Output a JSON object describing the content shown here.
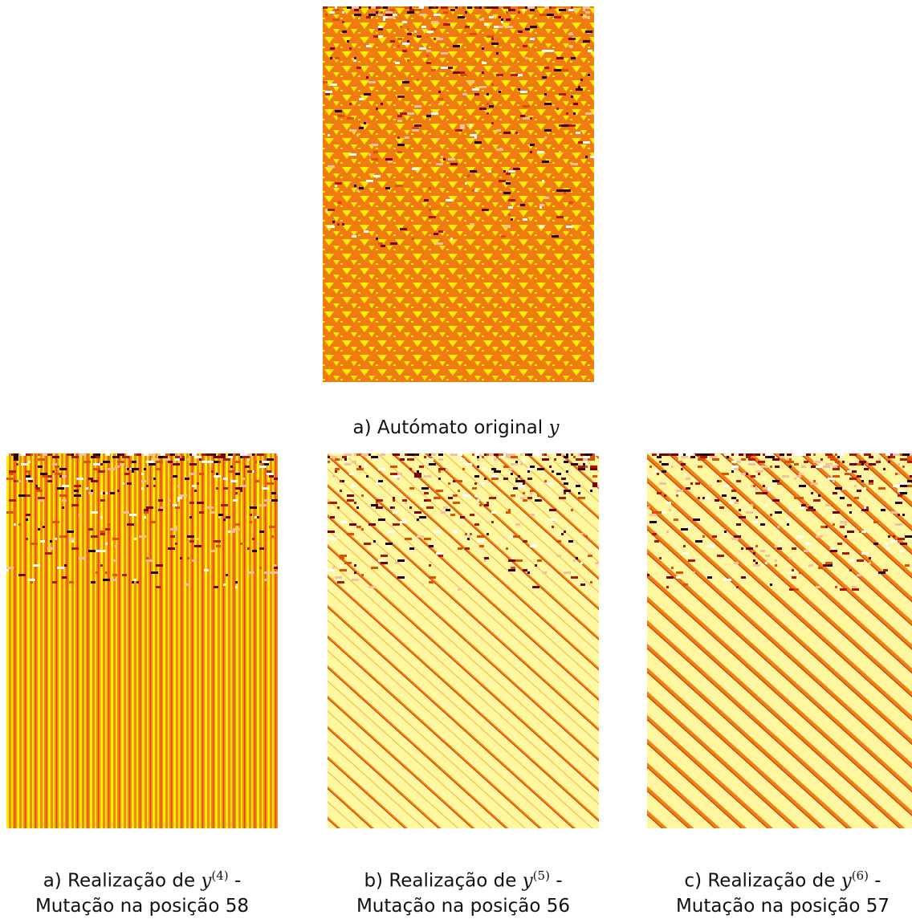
{
  "figure": {
    "top": {
      "label": "a) Autómato original",
      "math": "y"
    },
    "panels": [
      {
        "label": "a) Realização de",
        "math": "y",
        "superscript": "(4)",
        "dash": "-",
        "line2": "Mutação na posição 58"
      },
      {
        "label": "b) Realização de",
        "math": "y",
        "superscript": "(5)",
        "dash": "-",
        "line2": "Mutação na posição 56"
      },
      {
        "label": "c) Realização de",
        "math": "y",
        "superscript": "(6)",
        "dash": "-",
        "line2": "Mutação na posição 57"
      }
    ]
  }
}
